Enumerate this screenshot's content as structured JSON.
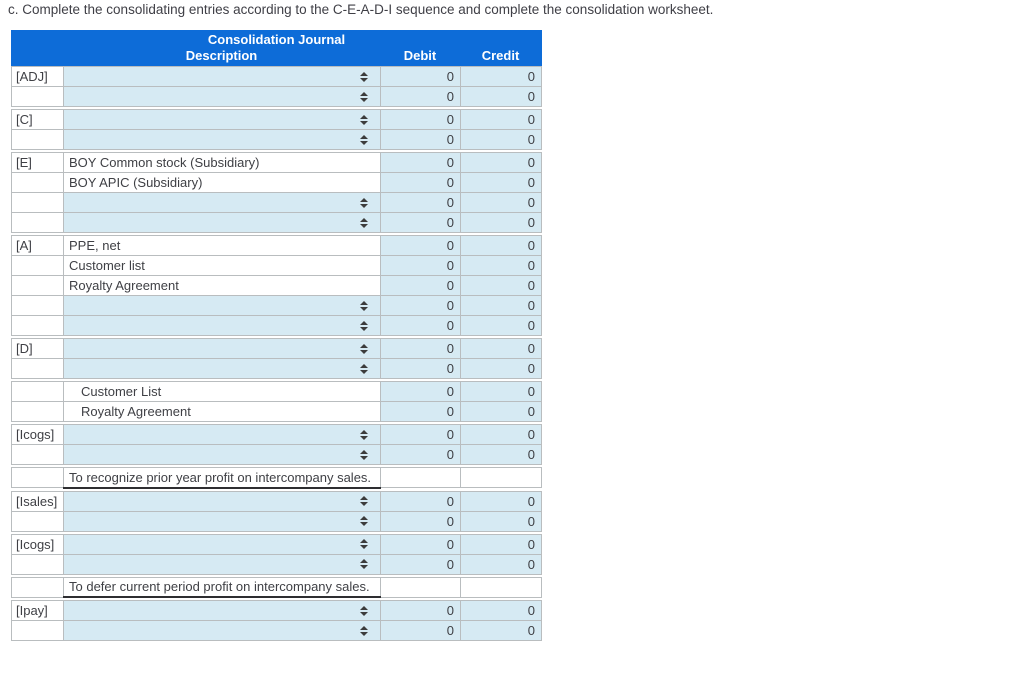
{
  "title": "c. Complete the consolidating entries according to the C-E-A-D-I sequence and complete the consolidation worksheet.",
  "table": {
    "header": {
      "title": "Consolidation Journal",
      "columns": {
        "description": "Description",
        "debit": "Debit",
        "credit": "Credit"
      }
    },
    "colors": {
      "header_bg": "#0d6cd8",
      "header_text": "#ffffff",
      "cell_blue": "#d6eaf3",
      "border": "#b9bdbf",
      "text": "#3f4045",
      "note_underline": "#2e2e31"
    },
    "icons": {
      "select_indicator": "updown-arrows-icon"
    },
    "sections": [
      {
        "rows": [
          {
            "label": "[ADJ]",
            "type": "select",
            "description": "",
            "debit": "0",
            "credit": "0"
          },
          {
            "label": "",
            "type": "select",
            "description": "",
            "debit": "0",
            "credit": "0"
          }
        ]
      },
      {
        "rows": [
          {
            "label": "[C]",
            "type": "select",
            "description": "",
            "debit": "0",
            "credit": "0"
          },
          {
            "label": "",
            "type": "select",
            "description": "",
            "debit": "0",
            "credit": "0"
          }
        ]
      },
      {
        "rows": [
          {
            "label": "[E]",
            "type": "text",
            "description": "BOY Common stock (Subsidiary)",
            "debit": "0",
            "credit": "0"
          },
          {
            "label": "",
            "type": "text",
            "description": "BOY APIC (Subsidiary)",
            "debit": "0",
            "credit": "0"
          },
          {
            "label": "",
            "type": "select",
            "description": "",
            "debit": "0",
            "credit": "0"
          },
          {
            "label": "",
            "type": "select",
            "description": "",
            "debit": "0",
            "credit": "0"
          }
        ]
      },
      {
        "rows": [
          {
            "label": "[A]",
            "type": "text",
            "description": "PPE, net",
            "debit": "0",
            "credit": "0"
          },
          {
            "label": "",
            "type": "text",
            "description": "Customer list",
            "debit": "0",
            "credit": "0"
          },
          {
            "label": "",
            "type": "text",
            "description": "Royalty Agreement",
            "debit": "0",
            "credit": "0"
          },
          {
            "label": "",
            "type": "select",
            "description": "",
            "debit": "0",
            "credit": "0"
          },
          {
            "label": "",
            "type": "select",
            "description": "",
            "debit": "0",
            "credit": "0"
          }
        ]
      },
      {
        "rows": [
          {
            "label": "[D]",
            "type": "select",
            "description": "",
            "debit": "0",
            "credit": "0"
          },
          {
            "label": "",
            "type": "select",
            "description": "",
            "debit": "0",
            "credit": "0"
          }
        ]
      },
      {
        "rows": [
          {
            "label": "",
            "type": "text",
            "indent": true,
            "description": "Customer List",
            "debit": "0",
            "credit": "0"
          },
          {
            "label": "",
            "type": "text",
            "indent": true,
            "description": "Royalty Agreement",
            "debit": "0",
            "credit": "0"
          }
        ]
      },
      {
        "rows": [
          {
            "label": "[Icogs]",
            "type": "select",
            "description": "",
            "debit": "0",
            "credit": "0"
          },
          {
            "label": "",
            "type": "select",
            "description": "",
            "debit": "0",
            "credit": "0"
          }
        ]
      },
      {
        "rows": [
          {
            "label": "",
            "type": "note",
            "description": "To recognize prior year profit on intercompany sales.",
            "debit": "",
            "credit": ""
          }
        ]
      },
      {
        "rows": [
          {
            "label": "[Isales]",
            "type": "select",
            "description": "",
            "debit": "0",
            "credit": "0"
          },
          {
            "label": "",
            "type": "select",
            "description": "",
            "debit": "0",
            "credit": "0"
          }
        ]
      },
      {
        "rows": [
          {
            "label": "[Icogs]",
            "type": "select",
            "description": "",
            "debit": "0",
            "credit": "0"
          },
          {
            "label": "",
            "type": "select",
            "description": "",
            "debit": "0",
            "credit": "0"
          }
        ]
      },
      {
        "rows": [
          {
            "label": "",
            "type": "note",
            "description": "To defer current period profit on intercompany sales.",
            "debit": "",
            "credit": ""
          }
        ]
      },
      {
        "rows": [
          {
            "label": "[Ipay]",
            "type": "select",
            "description": "",
            "debit": "0",
            "credit": "0"
          },
          {
            "label": "",
            "type": "select",
            "description": "",
            "debit": "0",
            "credit": "0"
          }
        ]
      }
    ]
  }
}
